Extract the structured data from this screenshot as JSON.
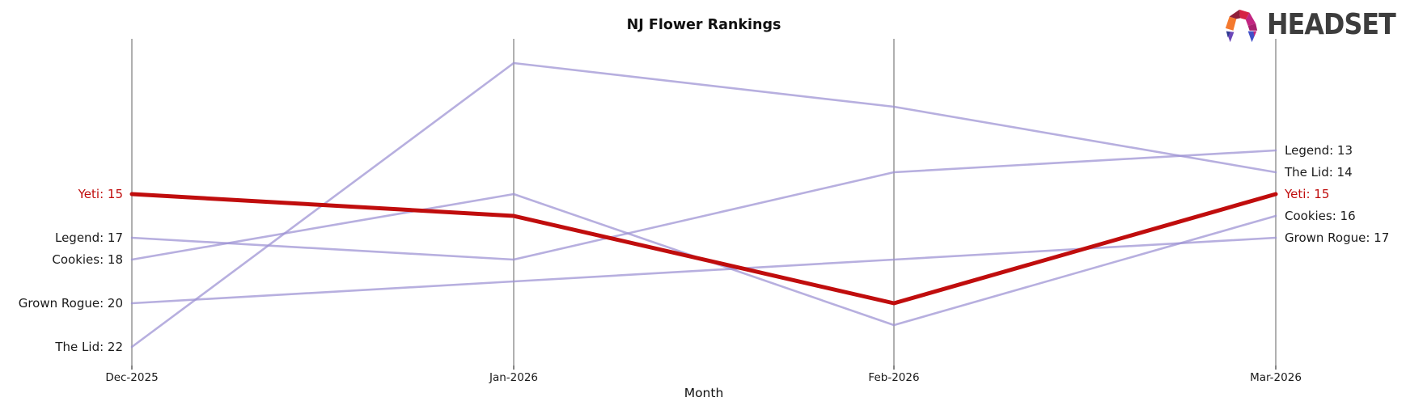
{
  "logo": {
    "text": "HEADSET"
  },
  "colors": {
    "highlight_red": "#c00d0d",
    "line_purple": "#9b90d3",
    "axis_gray": "#b0b0b0",
    "tick_dark": "#333333",
    "label_dark": "#1a1a1a",
    "title_dark": "#111111",
    "logo_text": "#3d3d3d"
  },
  "chart_data": {
    "type": "line",
    "title": "NJ Flower Rankings",
    "xlabel": "Month",
    "x": [
      "Dec-2025",
      "Jan-2026",
      "Feb-2026",
      "Mar-2026"
    ],
    "y_axis": "rank (lower number = higher position, axis inverted)",
    "ylim": [
      9,
      22
    ],
    "grid": false,
    "legend_position": "endpoint labels on left and right axes",
    "series": [
      {
        "name": "Yeti",
        "values": [
          15,
          16,
          20,
          15
        ],
        "color": "#c00d0d",
        "highlight": true
      },
      {
        "name": "Legend",
        "values": [
          17,
          18,
          14,
          13
        ],
        "color": "#9b90d3",
        "highlight": false
      },
      {
        "name": "Cookies",
        "values": [
          18,
          15,
          21,
          16
        ],
        "color": "#9b90d3",
        "highlight": false
      },
      {
        "name": "Grown Rogue",
        "values": [
          20,
          19,
          18,
          17
        ],
        "color": "#9b90d3",
        "highlight": false
      },
      {
        "name": "The Lid",
        "values": [
          22,
          9,
          11,
          14
        ],
        "color": "#9b90d3",
        "highlight": false
      }
    ],
    "left_labels": [
      {
        "text": "Yeti: 15",
        "rank": 15,
        "color": "#c00d0d"
      },
      {
        "text": "Legend: 17",
        "rank": 17,
        "color": "#1a1a1a"
      },
      {
        "text": "Cookies: 18",
        "rank": 18,
        "color": "#1a1a1a"
      },
      {
        "text": "Grown Rogue: 20",
        "rank": 20,
        "color": "#1a1a1a"
      },
      {
        "text": "The Lid: 22",
        "rank": 22,
        "color": "#1a1a1a"
      }
    ],
    "right_labels": [
      {
        "text": "Legend: 13",
        "rank": 13,
        "color": "#1a1a1a"
      },
      {
        "text": "The Lid: 14",
        "rank": 14,
        "color": "#1a1a1a"
      },
      {
        "text": "Yeti: 15",
        "rank": 15,
        "color": "#c00d0d"
      },
      {
        "text": "Cookies: 16",
        "rank": 16,
        "color": "#1a1a1a"
      },
      {
        "text": "Grown Rogue: 17",
        "rank": 17,
        "color": "#1a1a1a"
      }
    ]
  }
}
